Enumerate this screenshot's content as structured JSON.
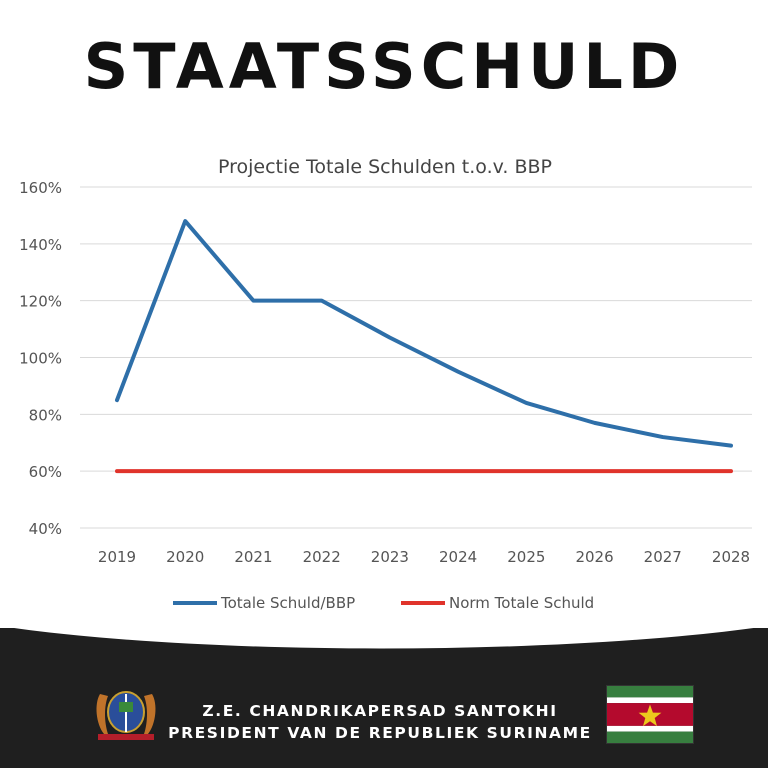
{
  "header": {
    "title": "STAATSSCHULD"
  },
  "chart_data": {
    "type": "line",
    "title": "Projectie Totale Schulden t.o.v. BBP",
    "categories": [
      "2019",
      "2020",
      "2021",
      "2022",
      "2023",
      "2024",
      "2025",
      "2026",
      "2027",
      "2028"
    ],
    "y_ticks": [
      "40%",
      "60%",
      "80%",
      "100%",
      "120%",
      "140%",
      "160%"
    ],
    "ylim": [
      40,
      160
    ],
    "grid": "horizontal",
    "legend": "bottom",
    "series": [
      {
        "name": "Totale Schuld/BBP",
        "color": "#2e6fa9",
        "values": [
          85,
          148,
          120,
          120,
          107,
          95,
          84,
          77,
          72,
          69
        ]
      },
      {
        "name": "Norm Totale Schuld",
        "color": "#e0332b",
        "values": [
          60,
          60,
          60,
          60,
          60,
          60,
          60,
          60,
          60,
          60
        ]
      }
    ]
  },
  "footer": {
    "line1": "Z.E. CHANDRIKAPERSAD SANTOKHI",
    "line2": "PRESIDENT VAN DE REPUBLIEK SURINAME",
    "flag_colors": [
      "#377e3f",
      "#ffffff",
      "#b40a2d",
      "#ecc81d"
    ],
    "icons": [
      "coat-of-arms-icon",
      "suriname-flag-icon"
    ]
  }
}
